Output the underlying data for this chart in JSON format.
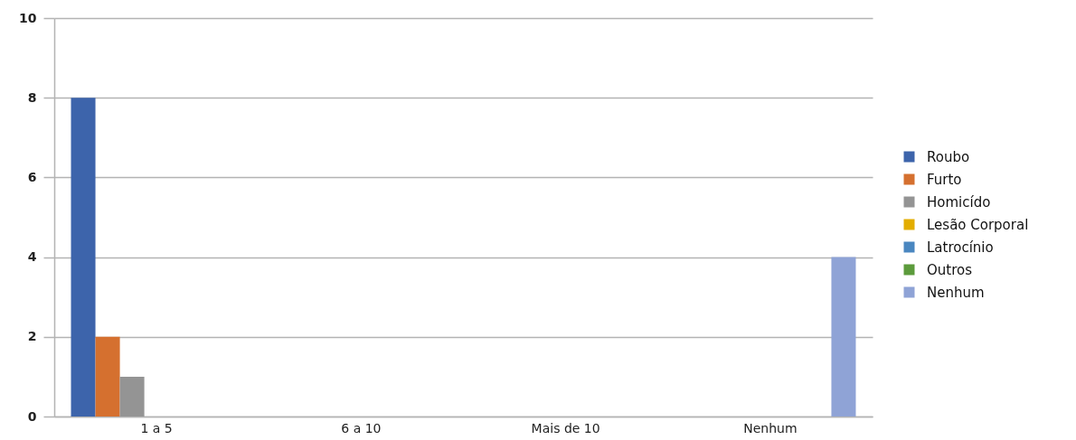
{
  "chart_data": {
    "type": "bar",
    "categories": [
      "1 a 5",
      "6 a 10",
      "Mais de 10",
      "Nenhum"
    ],
    "series": [
      {
        "name": "Roubo",
        "color": "#3d64ab",
        "values": [
          8,
          null,
          null,
          null
        ]
      },
      {
        "name": "Furto",
        "color": "#d5702f",
        "values": [
          2,
          null,
          null,
          null
        ]
      },
      {
        "name": "Homicído",
        "color": "#949494",
        "values": [
          1,
          null,
          null,
          null
        ]
      },
      {
        "name": "Lesão Corporal",
        "color": "#e3ad00",
        "values": [
          null,
          null,
          null,
          null
        ]
      },
      {
        "name": "Latrocínio",
        "color": "#4a87c0",
        "values": [
          null,
          null,
          null,
          null
        ]
      },
      {
        "name": "Outros",
        "color": "#5c9b3c",
        "values": [
          null,
          null,
          null,
          null
        ]
      },
      {
        "name": "Nenhum",
        "color": "#8fa3d6",
        "values": [
          null,
          null,
          null,
          4
        ]
      }
    ],
    "ylim": [
      0,
      10
    ],
    "yticks": [
      0,
      2,
      4,
      6,
      8,
      10
    ],
    "grid": "y",
    "legend": "right"
  }
}
